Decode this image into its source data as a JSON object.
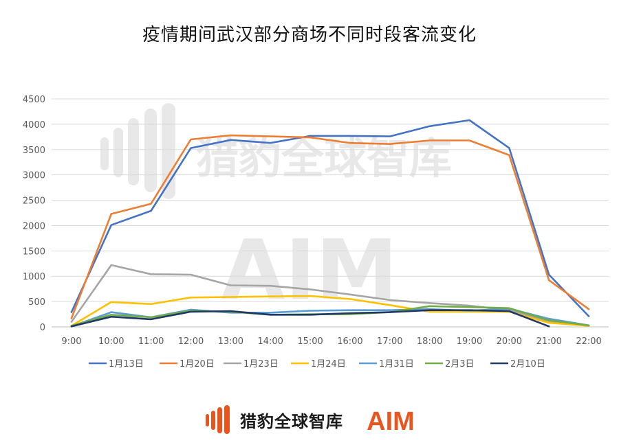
{
  "title": "疫情期间武汉部分商场不同时段客流变化",
  "watermark": {
    "brand": "猎豹全球智库",
    "aim": "AIM"
  },
  "footer": {
    "brand_name": "猎豹全球智库",
    "aim_text": "AIM",
    "aim_color": "#e8561f"
  },
  "chart_data": {
    "type": "line",
    "title": "疫情期间武汉部分商场不同时段客流变化",
    "x": [
      "9:00",
      "10:00",
      "11:00",
      "12:00",
      "13:00",
      "14:00",
      "15:00",
      "16:00",
      "17:00",
      "18:00",
      "19:00",
      "20:00",
      "21:00",
      "22:00"
    ],
    "ylim": [
      0,
      4500
    ],
    "yticks": [
      "0",
      "500",
      "1000",
      "1500",
      "2000",
      "2500",
      "3000",
      "3500",
      "4000",
      "4500"
    ],
    "grid": true,
    "legend_position": "bottom",
    "series": [
      {
        "name": "1月13日",
        "color": "#4472c4",
        "values": [
          290,
          2010,
          2290,
          3530,
          3690,
          3630,
          3770,
          3770,
          3760,
          3960,
          4080,
          3530,
          1030,
          210
        ]
      },
      {
        "name": "1月20日",
        "color": "#ed7d31",
        "values": [
          170,
          2230,
          2430,
          3700,
          3780,
          3760,
          3740,
          3630,
          3610,
          3680,
          3680,
          3390,
          920,
          350
        ]
      },
      {
        "name": "1月23日",
        "color": "#a5a5a5",
        "values": [
          100,
          1220,
          1040,
          1030,
          820,
          810,
          740,
          640,
          530,
          470,
          420,
          330,
          110,
          20
        ]
      },
      {
        "name": "1月24日",
        "color": "#ffc000",
        "values": [
          20,
          490,
          450,
          580,
          590,
          600,
          610,
          550,
          430,
          300,
          300,
          300,
          80,
          20
        ]
      },
      {
        "name": "1月31日",
        "color": "#5b9bd5",
        "values": [
          10,
          290,
          190,
          340,
          280,
          280,
          320,
          330,
          330,
          350,
          320,
          360,
          160,
          30
        ]
      },
      {
        "name": "2月3日",
        "color": "#70ad47",
        "values": [
          20,
          240,
          190,
          320,
          300,
          240,
          250,
          250,
          290,
          410,
          390,
          370,
          130,
          30
        ]
      },
      {
        "name": "2月10日",
        "color": "#203864",
        "values": [
          10,
          200,
          150,
          300,
          310,
          240,
          240,
          270,
          290,
          330,
          330,
          310,
          10,
          null
        ]
      }
    ]
  }
}
